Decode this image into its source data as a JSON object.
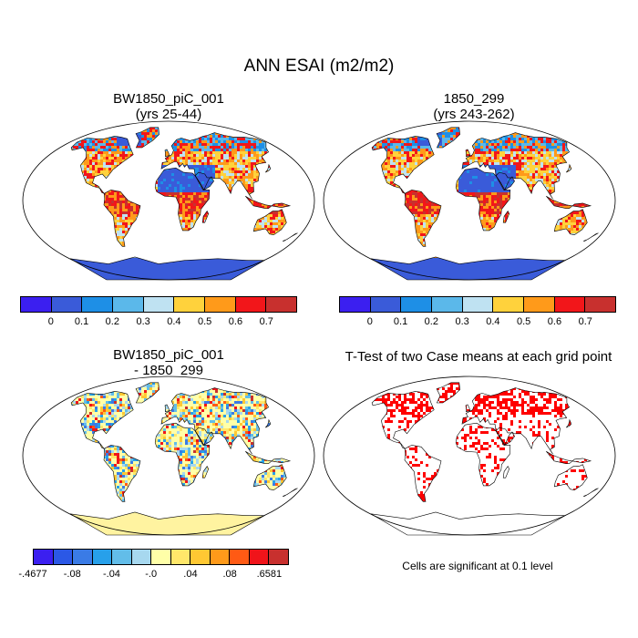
{
  "title": "ANN ESAI (m2/m2)",
  "panels": [
    {
      "title1": "BW1850_piC_001",
      "title2": "(yrs 25-44)"
    },
    {
      "title1": "1850_299",
      "title2": "(yrs 243-262)"
    },
    {
      "title1": "BW1850_piC_001",
      "title2": "- 1850_299"
    },
    {
      "title1": "T-Test of two Case means at each grid point",
      "title2": ""
    }
  ],
  "colorbar_abs": {
    "colors": [
      "#3b1ff0",
      "#3a5bd9",
      "#1e8fe6",
      "#5bb8ea",
      "#bfe2f2",
      "#ffd23c",
      "#ff9a1a",
      "#f2161a",
      "#c8302e"
    ],
    "labels": [
      "0",
      "0.1",
      "0.2",
      "0.3",
      "0.4",
      "0.5",
      "0.6",
      "0.7"
    ]
  },
  "colorbar_diff": {
    "colors": [
      "#3b1ff0",
      "#2b58e6",
      "#3a7be6",
      "#27a0ea",
      "#62bde9",
      "#a7d8ef",
      "#ffffa8",
      "#ffe76a",
      "#ffc833",
      "#ff9a1a",
      "#ff5a14",
      "#f0141a",
      "#c8302e"
    ],
    "labels": [
      "-.4677",
      "-.08",
      "-.04",
      "-.0",
      ".04",
      ".08",
      ".6581"
    ]
  },
  "ttest_note": "Cells are significant at 0.1 level",
  "colors": {
    "ocean": "#ffffff",
    "antarctica_abs": "#3a5bd9",
    "antarctica_diff": "#fff3a0",
    "significant": "#ff0000"
  }
}
